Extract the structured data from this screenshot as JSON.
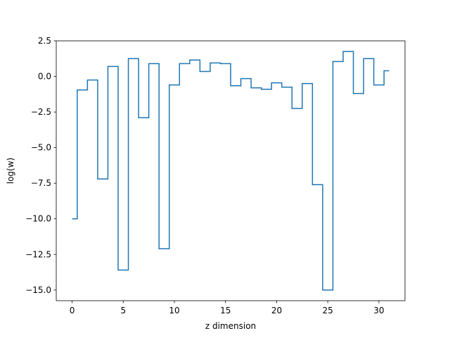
{
  "chart_data": {
    "type": "line",
    "drawstyle": "steps-mid",
    "title": "",
    "xlabel": "z dimension",
    "ylabel": "log(w)",
    "xlim": [
      -1.55,
      32.55
    ],
    "ylim": [
      -15.75,
      2.5
    ],
    "xticks": [
      0,
      5,
      10,
      15,
      20,
      25,
      30
    ],
    "xtick_labels": [
      "0",
      "5",
      "10",
      "15",
      "20",
      "25",
      "30"
    ],
    "yticks": [
      2.5,
      0.0,
      -2.5,
      -5.0,
      -7.5,
      -10.0,
      -12.5,
      -15.0
    ],
    "ytick_labels": [
      "2.5",
      "0.0",
      "−2.5",
      "−5.0",
      "−7.5",
      "−10.0",
      "−12.5",
      "−15.0"
    ],
    "grid": false,
    "color": "#1f77b4",
    "series": [
      {
        "x": [
          0,
          1,
          2,
          3,
          4,
          5,
          6,
          7,
          8,
          9,
          10,
          11,
          12,
          13,
          14,
          15,
          16,
          17,
          18,
          19,
          20,
          21,
          22,
          23,
          24,
          25,
          26,
          27,
          28,
          29,
          30,
          31
        ],
        "y": [
          -10.0,
          -0.95,
          -0.25,
          -7.2,
          0.7,
          -13.6,
          1.25,
          -2.9,
          0.9,
          -12.1,
          -0.6,
          0.9,
          1.15,
          0.35,
          0.95,
          0.9,
          -0.65,
          -0.15,
          -0.8,
          -0.9,
          -0.45,
          -0.75,
          -2.25,
          -0.5,
          -7.6,
          -15.0,
          1.05,
          1.75,
          -1.2,
          1.25,
          -0.6,
          0.4
        ]
      }
    ]
  }
}
